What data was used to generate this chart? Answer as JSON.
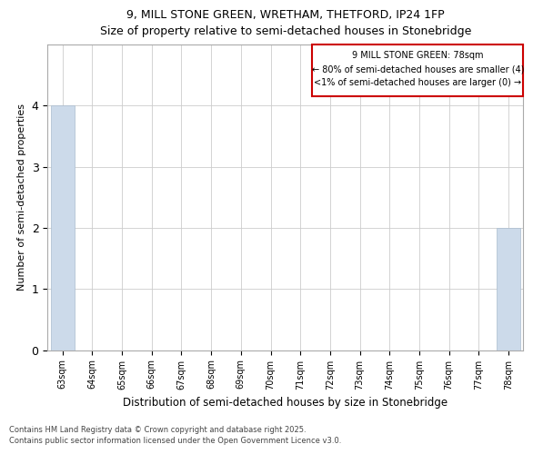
{
  "title_line1": "9, MILL STONE GREEN, WRETHAM, THETFORD, IP24 1FP",
  "title_line2": "Size of property relative to semi-detached houses in Stonebridge",
  "xlabel": "Distribution of semi-detached houses by size in Stonebridge",
  "ylabel": "Number of semi-detached properties",
  "categories": [
    "63sqm",
    "64sqm",
    "65sqm",
    "66sqm",
    "67sqm",
    "68sqm",
    "69sqm",
    "70sqm",
    "71sqm",
    "72sqm",
    "73sqm",
    "74sqm",
    "75sqm",
    "76sqm",
    "77sqm",
    "78sqm"
  ],
  "values": [
    4,
    0,
    0,
    0,
    0,
    0,
    0,
    0,
    0,
    0,
    0,
    0,
    0,
    0,
    0,
    2
  ],
  "bar_color": "#ccdaea",
  "bar_edge_color": "#aabcce",
  "highlight_index": 15,
  "annotation_box_color": "#cc0000",
  "annotation_title": "9 MILL STONE GREEN: 78sqm",
  "annotation_line1": "← 80% of semi-detached houses are smaller (4)",
  "annotation_line2": "<1% of semi-detached houses are larger (0) →",
  "ylim": [
    0,
    5
  ],
  "yticks": [
    0,
    1,
    2,
    3,
    4
  ],
  "footer_line1": "Contains HM Land Registry data © Crown copyright and database right 2025.",
  "footer_line2": "Contains public sector information licensed under the Open Government Licence v3.0.",
  "background_color": "#ffffff",
  "grid_color": "#cccccc"
}
